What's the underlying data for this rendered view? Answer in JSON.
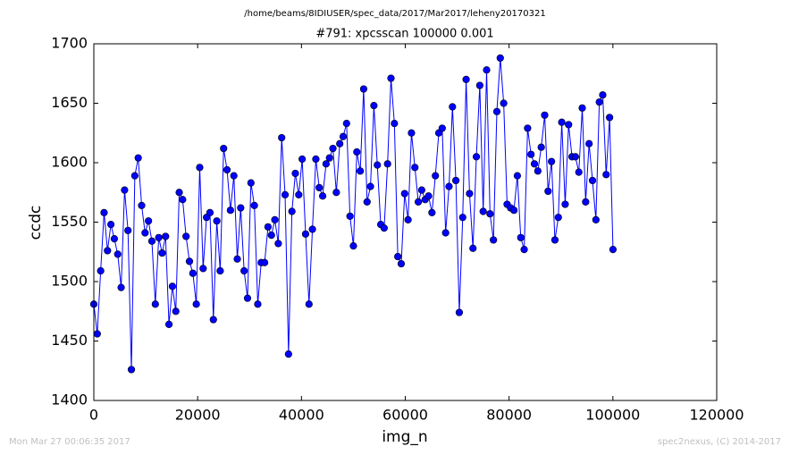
{
  "chart_data": {
    "type": "line",
    "suptitle": "/home/beams/8IDIUSER/spec_data/2017/Mar2017/leheny20170321",
    "title": "#791: xpcsscan 100000 0.001",
    "xlabel": "img_n",
    "ylabel": "ccdc",
    "footer_left": "Mon Mar 27 00:06:35 2017",
    "footer_right": "spec2nexus, (C) 2014-2017",
    "xlim": [
      0,
      120000
    ],
    "ylim": [
      1400,
      1700
    ],
    "xticks": [
      0,
      20000,
      40000,
      60000,
      80000,
      100000,
      120000
    ],
    "yticks": [
      1400,
      1450,
      1500,
      1550,
      1600,
      1650,
      1700
    ],
    "marker": "circle",
    "x": [
      0,
      658,
      1316,
      1974,
      2632,
      3290,
      3948,
      4606,
      5264,
      5922,
      6580,
      7238,
      7896,
      8554,
      9212,
      9870,
      10528,
      11186,
      11844,
      12502,
      13160,
      13818,
      14476,
      15134,
      15792,
      16450,
      17108,
      17766,
      18424,
      19082,
      19740,
      20398,
      21056,
      21714,
      22372,
      23030,
      23688,
      24346,
      25004,
      25662,
      26320,
      26978,
      27636,
      28294,
      28952,
      29610,
      30268,
      30926,
      31584,
      32242,
      32900,
      33558,
      34216,
      34874,
      35532,
      36190,
      36848,
      37506,
      38164,
      38822,
      39480,
      40138,
      40796,
      41454,
      42112,
      42770,
      43428,
      44086,
      44744,
      45402,
      46060,
      46718,
      47376,
      48034,
      48692,
      49350,
      50008,
      50666,
      51324,
      51982,
      52640,
      53298,
      53956,
      54614,
      55272,
      55930,
      56588,
      57246,
      57904,
      58562,
      59220,
      59878,
      60536,
      61194,
      61852,
      62510,
      63168,
      63826,
      64484,
      65142,
      65800,
      66458,
      67116,
      67774,
      68432,
      69090,
      69748,
      70406,
      71064,
      71722,
      72380,
      73038,
      73696,
      74354,
      75012,
      75670,
      76328,
      76986,
      77644,
      78302,
      78960,
      79618,
      80276,
      80934,
      81592,
      82250,
      82908,
      83566,
      84224,
      84882,
      85540,
      86198,
      86856,
      87514,
      88172,
      88830,
      89488,
      90146,
      90804,
      91462,
      92120,
      92778,
      93436,
      94094,
      94752,
      95410,
      96068,
      96726,
      97384,
      98042,
      98700,
      99358,
      100016
    ],
    "series": [
      {
        "name": "ccdc",
        "color": "#0000ff",
        "values": [
          1481,
          1456,
          1509,
          1558,
          1526,
          1548,
          1536,
          1523,
          1495,
          1577,
          1543,
          1426,
          1589,
          1604,
          1564,
          1541,
          1551,
          1534,
          1481,
          1537,
          1524,
          1538,
          1464,
          1496,
          1475,
          1575,
          1569,
          1538,
          1517,
          1507,
          1481,
          1596,
          1511,
          1554,
          1558,
          1468,
          1551,
          1509,
          1612,
          1594,
          1560,
          1589,
          1519,
          1562,
          1509,
          1486,
          1583,
          1564,
          1481,
          1516,
          1516,
          1546,
          1539,
          1552,
          1532,
          1621,
          1573,
          1439,
          1559,
          1591,
          1573,
          1603,
          1540,
          1481,
          1544,
          1603,
          1579,
          1572,
          1599,
          1604,
          1612,
          1575,
          1616,
          1622,
          1633,
          1555,
          1530,
          1609,
          1593,
          1662,
          1567,
          1580,
          1648,
          1598,
          1548,
          1545,
          1599,
          1671,
          1633,
          1521,
          1515,
          1574,
          1552,
          1625,
          1596,
          1567,
          1577,
          1569,
          1572,
          1558,
          1589,
          1625,
          1629,
          1541,
          1580,
          1647,
          1585,
          1474,
          1554,
          1670,
          1574,
          1528,
          1605,
          1665,
          1559,
          1678,
          1557,
          1535,
          1643,
          1688,
          1650,
          1565,
          1562,
          1560,
          1589,
          1537,
          1527,
          1629,
          1607,
          1599,
          1593,
          1613,
          1640,
          1576,
          1601,
          1535,
          1554,
          1634,
          1565,
          1632,
          1605,
          1605,
          1592,
          1646,
          1567,
          1616,
          1585,
          1552,
          1651,
          1657,
          1590,
          1638,
          1527
        ]
      }
    ]
  }
}
